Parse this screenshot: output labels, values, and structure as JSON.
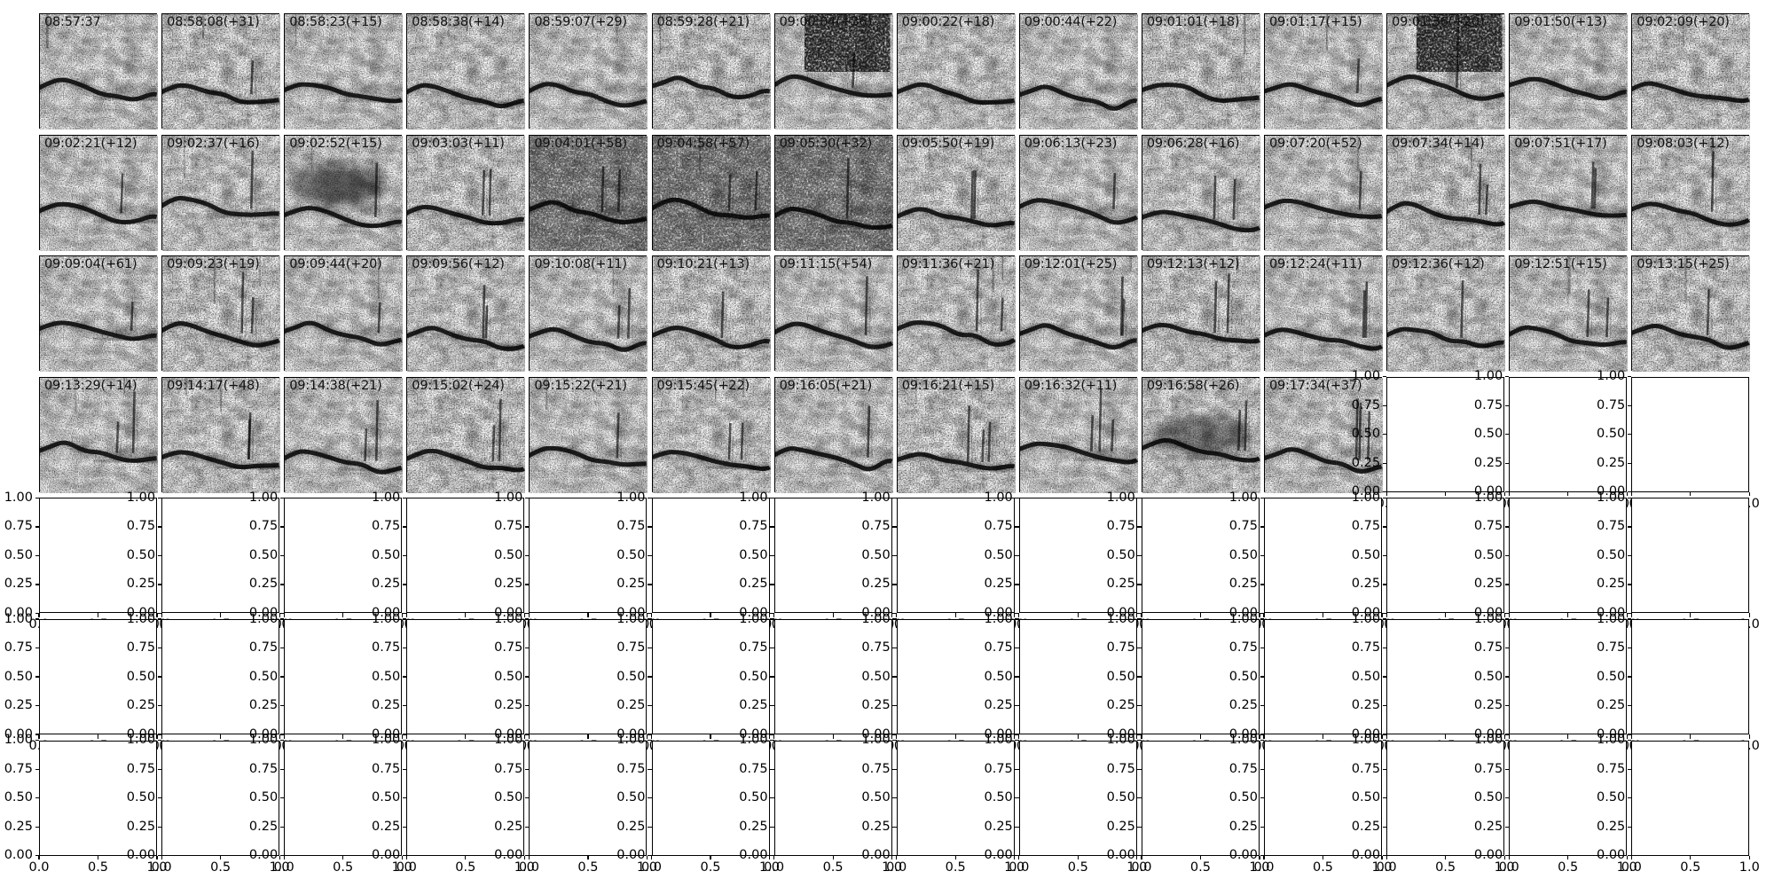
{
  "figure": {
    "description": "Grid of audio spectrogram thumbnails with timestamp labels; unused subplot axes are empty with default 0-1 tick labels",
    "background": "#ffffff",
    "ink": "#000000",
    "label_color": "#111111"
  },
  "chart_data": {
    "type": "heatmap",
    "subtype": "spectrogram-thumbnail-grid",
    "title": "",
    "xlabel": "",
    "ylabel": "",
    "layout": {
      "rows": 7,
      "cols": 14,
      "image_panels": 53,
      "empty_panels": 45,
      "grid_on": false,
      "legend": "none"
    },
    "panel_timestamps": [
      [
        "08:57:37",
        "08:58:08(+31)",
        "08:58:23(+15)",
        "08:58:38(+14)",
        "08:59:07(+29)",
        "08:59:28(+21)",
        "09:00:04(+36)",
        "09:00:22(+18)",
        "09:00:44(+22)",
        "09:01:01(+18)",
        "09:01:17(+15)",
        "09:01:36(+20)",
        "09:01:50(+13)",
        "09:02:09(+20)"
      ],
      [
        "09:02:21(+12)",
        "09:02:37(+16)",
        "09:02:52(+15)",
        "09:03:03(+11)",
        "09:04:01(+58)",
        "09:04:58(+57)",
        "09:05:30(+32)",
        "09:05:50(+19)",
        "09:06:13(+23)",
        "09:06:28(+16)",
        "09:07:20(+52)",
        "09:07:34(+14)",
        "09:07:51(+17)",
        "09:08:03(+12)"
      ],
      [
        "09:09:04(+61)",
        "09:09:23(+19)",
        "09:09:44(+20)",
        "09:09:56(+12)",
        "09:10:08(+11)",
        "09:10:21(+13)",
        "09:11:15(+54)",
        "09:11:36(+21)",
        "09:12:01(+25)",
        "09:12:13(+12)",
        "09:12:24(+11)",
        "09:12:36(+12)",
        "09:12:51(+15)",
        "09:13:15(+25)"
      ],
      [
        "09:13:29(+14)",
        "09:14:17(+48)",
        "09:14:38(+21)",
        "09:15:02(+24)",
        "09:15:22(+21)",
        "09:15:45(+22)",
        "09:16:05(+21)",
        "09:16:21(+15)",
        "09:16:32(+11)",
        "09:16:58(+26)",
        "09:17:34(+37)"
      ]
    ],
    "empty_panel_axes": {
      "xlim": [
        0,
        1
      ],
      "ylim": [
        0,
        1
      ],
      "y_ticks": [
        "1.00",
        "0.75",
        "0.50",
        "0.25",
        "0.00"
      ],
      "x_ticks": [
        "0.0",
        "0.5",
        "1.0"
      ]
    },
    "dense_noise_panels": {
      "09:00:04(+36)": "top",
      "09:01:36(+20)": "top",
      "09:02:52(+15)": "center",
      "09:04:01(+58)": "overall",
      "09:04:58(+57)": "overall",
      "09:05:30(+32)": "overall",
      "09:16:58(+26)": "center-low"
    }
  }
}
